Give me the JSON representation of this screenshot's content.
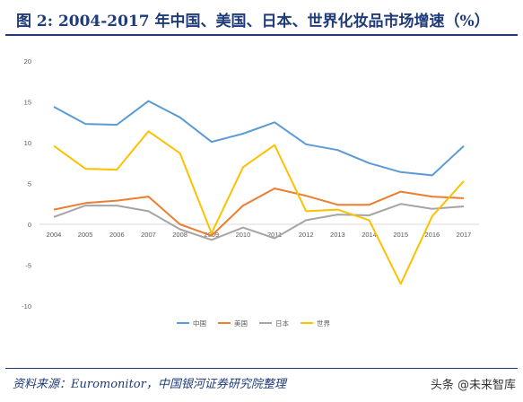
{
  "title": "图 2: 2004-2017 年中国、美国、日本、世界化妆品市场增速（%）",
  "footer": "资料来源：Euromonitor，中国银河证券研究院整理",
  "watermark": "头条 @未来智库",
  "chart_data": {
    "type": "line",
    "title": "",
    "xlabel": "",
    "ylabel": "",
    "categories": [
      "2004",
      "2005",
      "2006",
      "2007",
      "2008",
      "2009",
      "2010",
      "2011",
      "2012",
      "2013",
      "2014",
      "2015",
      "2016",
      "2017"
    ],
    "ylim": [
      -10,
      20
    ],
    "yticks": [
      -10,
      -5,
      0,
      5,
      10,
      15,
      20
    ],
    "grid": false,
    "legend_position": "bottom",
    "series": [
      {
        "name": "中国",
        "color": "#5b9bd5",
        "values": [
          14.4,
          12.3,
          12.2,
          15.1,
          13.1,
          10.1,
          11.1,
          12.5,
          9.8,
          9.1,
          7.5,
          6.4,
          6.0,
          9.6
        ]
      },
      {
        "name": "美国",
        "color": "#ed7d31",
        "values": [
          1.8,
          2.6,
          2.9,
          3.4,
          0.0,
          -1.4,
          2.3,
          4.4,
          3.5,
          2.4,
          2.4,
          4.0,
          3.4,
          3.2
        ]
      },
      {
        "name": "日本",
        "color": "#a5a5a5",
        "values": [
          0.9,
          2.3,
          2.3,
          1.6,
          -0.6,
          -1.9,
          -0.4,
          -1.7,
          0.5,
          1.2,
          1.1,
          2.5,
          1.9,
          2.2
        ]
      },
      {
        "name": "世界",
        "color": "#ffc000",
        "values": [
          9.6,
          6.8,
          6.7,
          11.4,
          8.7,
          -1.1,
          7.0,
          9.7,
          1.6,
          1.8,
          0.5,
          -7.3,
          1.0,
          5.3
        ]
      }
    ]
  }
}
